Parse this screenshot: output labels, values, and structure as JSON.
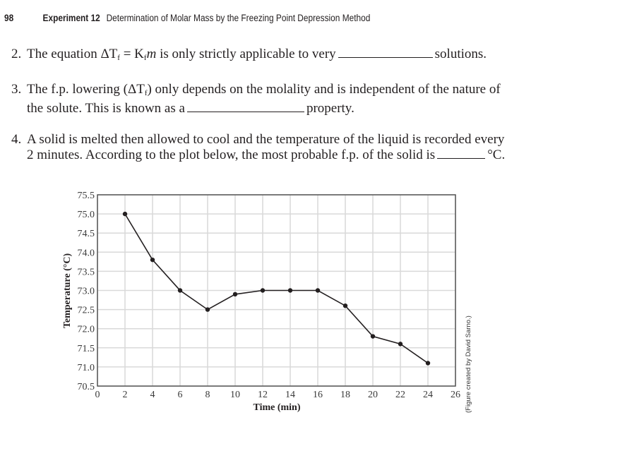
{
  "header": {
    "page_number": "98",
    "experiment": "Experiment 12",
    "title": "Determination of Molar Mass by the Freezing Point Depression Method"
  },
  "questions": [
    {
      "number": "2.",
      "text_before": "The equation ΔT",
      "sub1": "f",
      "text_mid1": " = K",
      "sub2": "f",
      "italic_m": "m",
      "text_mid2": " is only strictly applicable to very",
      "text_after": "solutions."
    },
    {
      "number": "3.",
      "line1_a": "The f.p. lowering (ΔT",
      "line1_sub": "f",
      "line1_b": ") only depends on the molality and is independent of the nature of",
      "line2_before": "the solute. This is known as a",
      "line2_after": "property."
    },
    {
      "number": "4.",
      "line1": "A solid is melted then allowed to cool and the temperature of the liquid is recorded every",
      "line2_before": "2 minutes. According to the plot below, the most probable f.p. of the solid is",
      "line2_after": "°C."
    }
  ],
  "credit": "(Figure created by David Sarno.)",
  "chart_data": {
    "type": "line",
    "title": "",
    "xlabel": "Time (min)",
    "ylabel": "Temperature (°C)",
    "xlim": [
      0,
      26
    ],
    "ylim": [
      70.5,
      75.5
    ],
    "x_ticks": [
      "0",
      "2",
      "4",
      "6",
      "8",
      "10",
      "12",
      "14",
      "16",
      "18",
      "20",
      "22",
      "24",
      "26"
    ],
    "y_ticks": [
      "70.5",
      "71.0",
      "71.5",
      "72.0",
      "72.5",
      "73.0",
      "73.5",
      "74.0",
      "74.5",
      "75.0",
      "75.5"
    ],
    "grid": true,
    "legend": null,
    "x": [
      2,
      4,
      6,
      8,
      10,
      12,
      14,
      16,
      18,
      20,
      22,
      24
    ],
    "values": [
      75.0,
      73.8,
      73.0,
      72.5,
      72.9,
      73.0,
      73.0,
      73.0,
      72.6,
      71.8,
      71.6,
      71.1
    ],
    "line_color": "#231f20",
    "grid_color": "#d9d9d9"
  }
}
